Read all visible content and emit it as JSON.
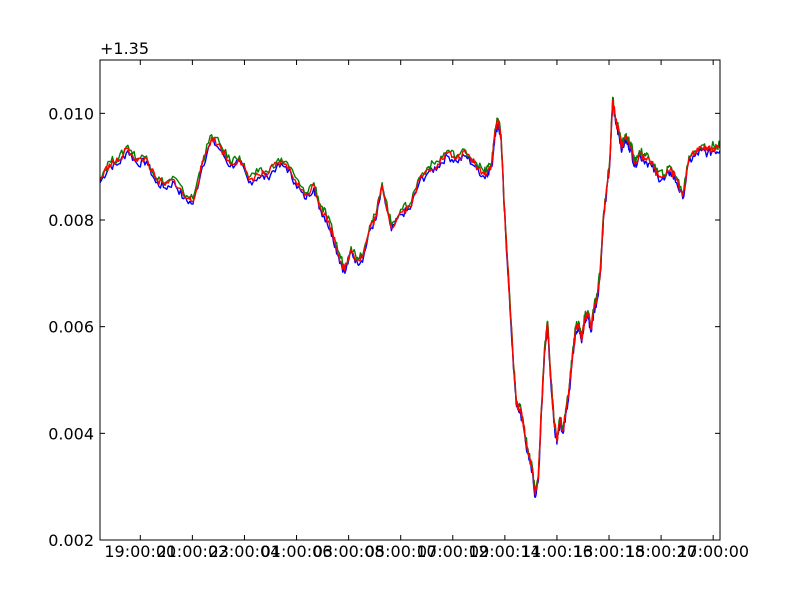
{
  "chart_data": {
    "type": "line",
    "title": "",
    "xlabel": "",
    "ylabel": "",
    "y_offset_label": "+1.35",
    "ylim": [
      0.002,
      0.011
    ],
    "yticks": [
      0.002,
      0.004,
      0.006,
      0.008,
      0.01
    ],
    "ytick_labels": [
      "0.002",
      "0.004",
      "0.006",
      "0.008",
      "0.010"
    ],
    "xlim": [
      0,
      100
    ],
    "xticks": [
      6.5,
      14.9,
      23.3,
      31.7,
      40.1,
      48.5,
      56.9,
      65.3,
      73.7,
      82.1,
      90.5,
      98.9
    ],
    "xtick_labels": [
      "19:00:00",
      "21:00:02",
      "23:00:04",
      "01:00:06",
      "03:00:08",
      "05:00:10",
      "07:00:12",
      "09:00:14",
      "11:00:16",
      "13:00:18",
      "15:00:20",
      "17:00:00"
    ],
    "grid": false,
    "series": [
      {
        "color": "#0000ff",
        "x": [
          0,
          1.5,
          3,
          4.5,
          6,
          7.5,
          9,
          10.5,
          12,
          13.5,
          15,
          16.5,
          18,
          19.5,
          21,
          22.5,
          24,
          25.5,
          27,
          28.5,
          30,
          31.5,
          33,
          34.5,
          35.5,
          36.5,
          37.5,
          38.5,
          39.5,
          40.5,
          41.5,
          42.5,
          43.5,
          44.5,
          45.5,
          47,
          48.5,
          50,
          51.5,
          53,
          54.5,
          56,
          57.5,
          59,
          60.5,
          62,
          62.6,
          63.2,
          63.7,
          64.2,
          64.7,
          65.2,
          65.7,
          66.2,
          66.7,
          67.2,
          67.7,
          68.2,
          68.7,
          69.2,
          69.7,
          70.2,
          70.7,
          71.2,
          71.7,
          72.2,
          72.7,
          73.2,
          73.7,
          74.2,
          74.7,
          75.2,
          75.7,
          76.2,
          76.7,
          77.2,
          77.7,
          78.2,
          78.7,
          79.2,
          79.7,
          80.2,
          80.7,
          81.2,
          81.7,
          82.2,
          82.7,
          83.2,
          83.7,
          84.2,
          84.7,
          85.2,
          85.7,
          86.2,
          87,
          88,
          89,
          90,
          91,
          92,
          93,
          94,
          95,
          96,
          97,
          98,
          99,
          100
        ],
        "y": [
          0.0087,
          0.009,
          0.00905,
          0.0093,
          0.00905,
          0.0091,
          0.0087,
          0.0086,
          0.0087,
          0.0084,
          0.0083,
          0.009,
          0.0095,
          0.0093,
          0.009,
          0.0091,
          0.0087,
          0.0088,
          0.0088,
          0.009,
          0.009,
          0.0087,
          0.0084,
          0.0086,
          0.0082,
          0.008,
          0.0077,
          0.0073,
          0.007,
          0.0074,
          0.0072,
          0.0073,
          0.0078,
          0.008,
          0.0086,
          0.0078,
          0.0081,
          0.0082,
          0.0087,
          0.0089,
          0.009,
          0.0092,
          0.0091,
          0.0092,
          0.009,
          0.0088,
          0.0089,
          0.009,
          0.0096,
          0.0098,
          0.0095,
          0.0082,
          0.0072,
          0.0062,
          0.0052,
          0.0045,
          0.0044,
          0.0042,
          0.0038,
          0.0035,
          0.0033,
          0.0028,
          0.0031,
          0.0044,
          0.0055,
          0.006,
          0.005,
          0.0042,
          0.0038,
          0.0042,
          0.004,
          0.0044,
          0.0048,
          0.0054,
          0.0059,
          0.006,
          0.0057,
          0.0061,
          0.0062,
          0.0059,
          0.0063,
          0.0065,
          0.007,
          0.008,
          0.0085,
          0.009,
          0.0102,
          0.0098,
          0.0096,
          0.0093,
          0.0095,
          0.0094,
          0.0093,
          0.009,
          0.0092,
          0.0091,
          0.009,
          0.0088,
          0.00875,
          0.0089,
          0.0087,
          0.0084,
          0.0091,
          0.0092,
          0.0093,
          0.00925,
          0.0093,
          0.0093
        ]
      },
      {
        "color": "#008000",
        "x": [
          0,
          1.5,
          3,
          4.5,
          6,
          7.5,
          9,
          10.5,
          12,
          13.5,
          15,
          16.5,
          18,
          19.5,
          21,
          22.5,
          24,
          25.5,
          27,
          28.5,
          30,
          31.5,
          33,
          34.5,
          35.5,
          36.5,
          37.5,
          38.5,
          39.5,
          40.5,
          41.5,
          42.5,
          43.5,
          44.5,
          45.5,
          47,
          48.5,
          50,
          51.5,
          53,
          54.5,
          56,
          57.5,
          59,
          60.5,
          62,
          62.6,
          63.2,
          63.7,
          64.2,
          64.7,
          65.2,
          65.7,
          66.2,
          66.7,
          67.2,
          67.7,
          68.2,
          68.7,
          69.2,
          69.7,
          70.2,
          70.7,
          71.2,
          71.7,
          72.2,
          72.7,
          73.2,
          73.7,
          74.2,
          74.7,
          75.2,
          75.7,
          76.2,
          76.7,
          77.2,
          77.7,
          78.2,
          78.7,
          79.2,
          79.7,
          80.2,
          80.7,
          81.2,
          81.7,
          82.2,
          82.7,
          83.2,
          83.7,
          84.2,
          84.7,
          85.2,
          85.7,
          86.2,
          87,
          88,
          89,
          90,
          91,
          92,
          93,
          94,
          95,
          96,
          97,
          98,
          99,
          100
        ],
        "y": [
          0.0088,
          0.0091,
          0.00915,
          0.0094,
          0.00915,
          0.0092,
          0.0088,
          0.0087,
          0.0088,
          0.0085,
          0.0084,
          0.0091,
          0.0096,
          0.0094,
          0.0091,
          0.0092,
          0.0088,
          0.0089,
          0.0089,
          0.0091,
          0.0091,
          0.0088,
          0.0085,
          0.0087,
          0.0083,
          0.0081,
          0.0078,
          0.0074,
          0.0071,
          0.0075,
          0.0073,
          0.0074,
          0.0079,
          0.0081,
          0.0087,
          0.0079,
          0.0082,
          0.0083,
          0.0088,
          0.009,
          0.0091,
          0.0093,
          0.0092,
          0.0093,
          0.0091,
          0.0089,
          0.009,
          0.0091,
          0.0097,
          0.0099,
          0.0096,
          0.0083,
          0.0073,
          0.0063,
          0.0053,
          0.0046,
          0.0045,
          0.0043,
          0.0039,
          0.0036,
          0.0034,
          0.0029,
          0.0032,
          0.0045,
          0.0056,
          0.0061,
          0.0051,
          0.0043,
          0.0039,
          0.0043,
          0.0041,
          0.0045,
          0.0049,
          0.0055,
          0.006,
          0.0061,
          0.0058,
          0.0062,
          0.0063,
          0.006,
          0.0064,
          0.0066,
          0.0071,
          0.0081,
          0.0086,
          0.0091,
          0.0103,
          0.0099,
          0.0097,
          0.0094,
          0.0096,
          0.0095,
          0.0094,
          0.0091,
          0.0093,
          0.0092,
          0.0091,
          0.0089,
          0.00885,
          0.009,
          0.0088,
          0.0085,
          0.0092,
          0.0093,
          0.0094,
          0.00935,
          0.0094,
          0.0094
        ]
      },
      {
        "color": "#ff0000",
        "x": [
          0,
          1.5,
          3,
          4.5,
          6,
          7.5,
          9,
          10.5,
          12,
          13.5,
          15,
          16.5,
          18,
          19.5,
          21,
          22.5,
          24,
          25.5,
          27,
          28.5,
          30,
          31.5,
          33,
          34.5,
          35.5,
          36.5,
          37.5,
          38.5,
          39.5,
          40.5,
          41.5,
          42.5,
          43.5,
          44.5,
          45.5,
          47,
          48.5,
          50,
          51.5,
          53,
          54.5,
          56,
          57.5,
          59,
          60.5,
          62,
          62.6,
          63.2,
          63.7,
          64.2,
          64.7,
          65.2,
          65.7,
          66.2,
          66.7,
          67.2,
          67.7,
          68.2,
          68.7,
          69.2,
          69.7,
          70.2,
          70.7,
          71.2,
          71.7,
          72.2,
          72.7,
          73.2,
          73.7,
          74.2,
          74.7,
          75.2,
          75.7,
          76.2,
          76.7,
          77.2,
          77.7,
          78.2,
          78.7,
          79.2,
          79.7,
          80.2,
          80.7,
          81.2,
          81.7,
          82.2,
          82.7,
          83.2,
          83.7,
          84.2,
          84.7,
          85.2,
          85.7,
          86.2,
          87,
          88,
          89,
          90,
          91,
          92,
          93,
          94,
          95,
          96,
          97,
          98,
          99,
          100
        ],
        "y": [
          0.00875,
          0.00905,
          0.0091,
          0.00935,
          0.0091,
          0.00915,
          0.00875,
          0.00865,
          0.00875,
          0.00845,
          0.00835,
          0.00905,
          0.00955,
          0.00935,
          0.00905,
          0.00915,
          0.00875,
          0.00885,
          0.00885,
          0.00905,
          0.00905,
          0.00875,
          0.00845,
          0.00865,
          0.00825,
          0.00805,
          0.00775,
          0.00735,
          0.00705,
          0.00745,
          0.00725,
          0.00735,
          0.00785,
          0.00805,
          0.00865,
          0.00785,
          0.00815,
          0.00825,
          0.00875,
          0.00895,
          0.00905,
          0.00925,
          0.00915,
          0.00925,
          0.00905,
          0.00885,
          0.00895,
          0.00905,
          0.00965,
          0.00985,
          0.00955,
          0.00825,
          0.00725,
          0.00625,
          0.00525,
          0.00455,
          0.00445,
          0.00425,
          0.00385,
          0.00355,
          0.00335,
          0.00285,
          0.00315,
          0.00445,
          0.00555,
          0.00605,
          0.00505,
          0.00425,
          0.00385,
          0.00425,
          0.00405,
          0.00445,
          0.00485,
          0.00545,
          0.00595,
          0.00605,
          0.00575,
          0.00615,
          0.00625,
          0.00595,
          0.00635,
          0.00655,
          0.00705,
          0.00805,
          0.00855,
          0.00905,
          0.01025,
          0.00985,
          0.00965,
          0.00935,
          0.00955,
          0.00945,
          0.00935,
          0.00905,
          0.00925,
          0.00915,
          0.00905,
          0.00885,
          0.0088,
          0.00895,
          0.00875,
          0.00845,
          0.00915,
          0.00925,
          0.00935,
          0.0093,
          0.00935,
          0.00935
        ]
      }
    ]
  }
}
